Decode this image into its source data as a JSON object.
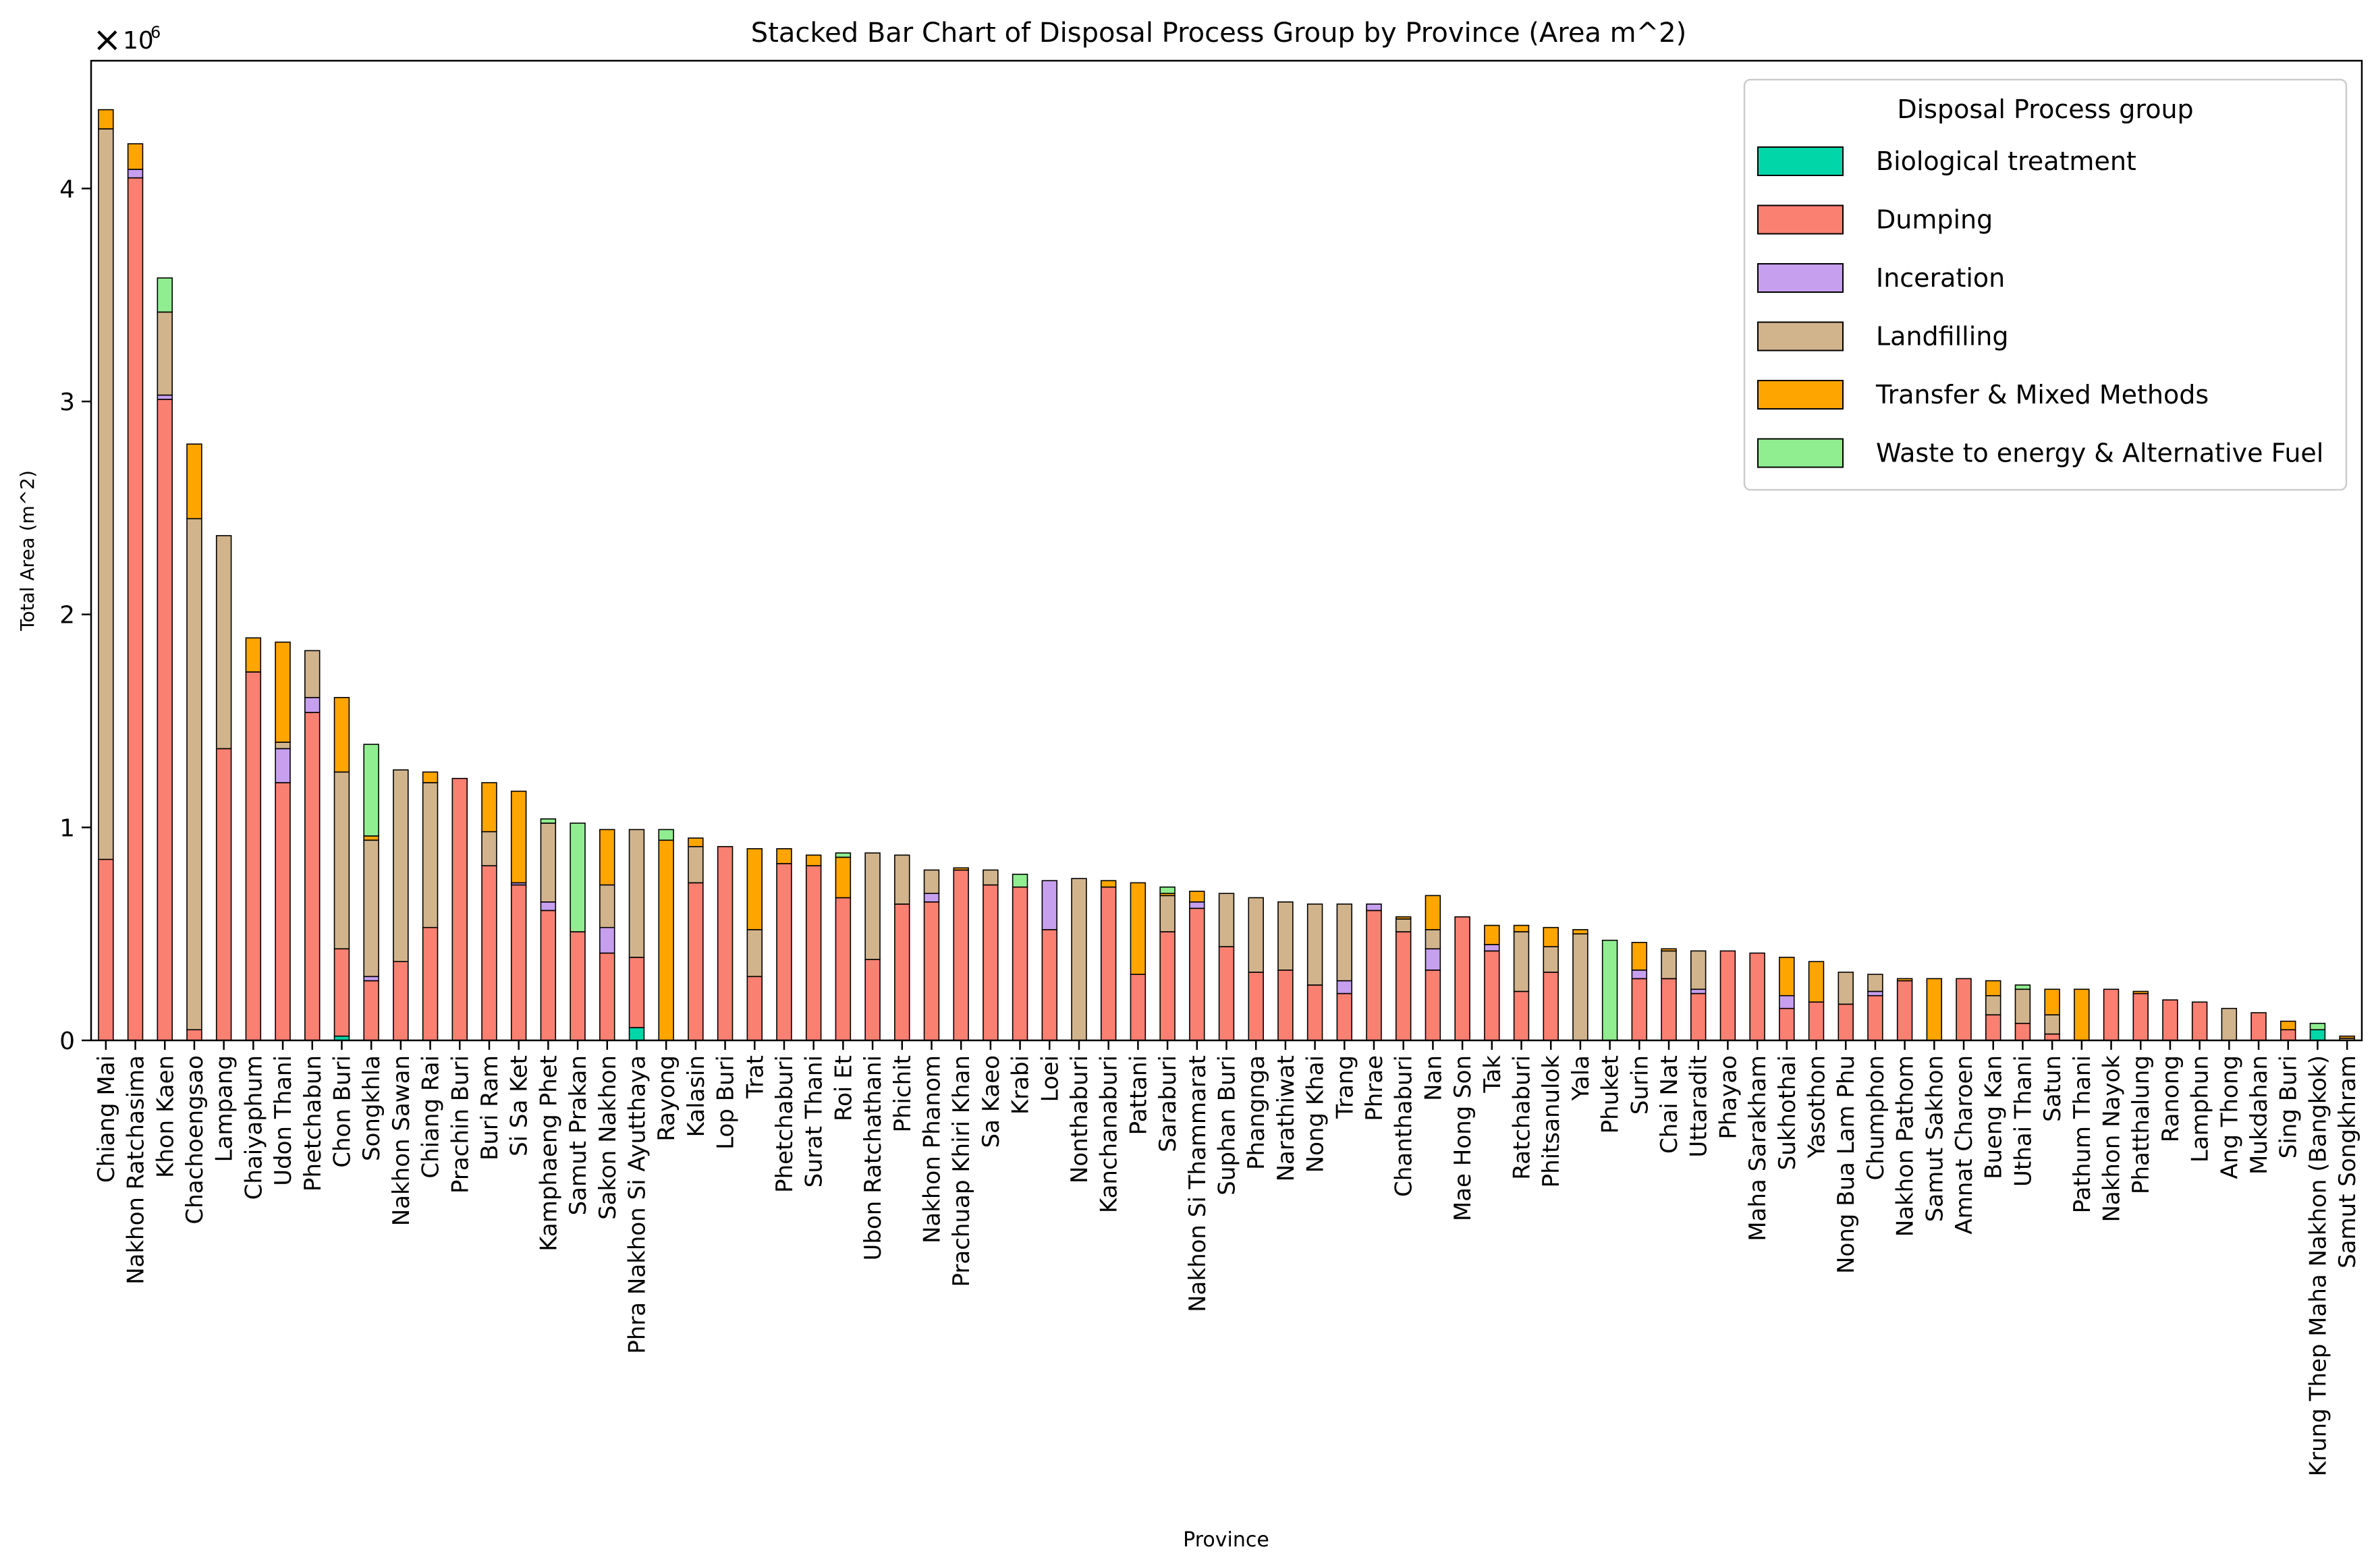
{
  "chart_data": {
    "type": "bar",
    "stacked": true,
    "title": "Stacked Bar Chart of Disposal Process Group by Province (Area m^2)",
    "xlabel": "Province",
    "ylabel": "Total Area (m^2)",
    "y_scale_label": "1e6",
    "ylim": [
      0,
      4.6
    ],
    "yticks": [
      0,
      1,
      2,
      3,
      4
    ],
    "grid": false,
    "legend": {
      "title": "Disposal Process group",
      "placement": "top-right"
    },
    "categories": [
      "Chiang Mai",
      "Nakhon Ratchasima",
      "Khon Kaen",
      "Chachoengsao",
      "Lampang",
      "Chaiyaphum",
      "Udon Thani",
      "Phetchabun",
      "Chon Buri",
      "Songkhla",
      "Nakhon Sawan",
      "Chiang Rai",
      "Prachin Buri",
      "Buri Ram",
      "Si Sa Ket",
      "Kamphaeng Phet",
      "Samut Prakan",
      "Sakon Nakhon",
      "Phra Nakhon Si Ayutthaya",
      "Rayong",
      "Kalasin",
      "Lop Buri",
      "Trat",
      "Phetchaburi",
      "Surat Thani",
      "Roi Et",
      "Ubon Ratchathani",
      "Phichit",
      "Nakhon Phanom",
      "Prachuap Khiri Khan",
      "Sa Kaeo",
      "Krabi",
      "Loei",
      "Nonthaburi",
      "Kanchanaburi",
      "Pattani",
      "Saraburi",
      "Nakhon Si Thammarat",
      "Suphan Buri",
      "Phangnga",
      "Narathiwat",
      "Nong Khai",
      "Trang",
      "Phrae",
      "Chanthaburi",
      "Nan",
      "Mae Hong Son",
      "Tak",
      "Ratchaburi",
      "Phitsanulok",
      "Yala",
      "Phuket",
      "Surin",
      "Chai Nat",
      "Uttaradit",
      "Phayao",
      "Maha Sarakham",
      "Sukhothai",
      "Yasothon",
      "Nong Bua Lam Phu",
      "Chumphon",
      "Nakhon Pathom",
      "Samut Sakhon",
      "Amnat Charoen",
      "Bueng Kan",
      "Uthai Thani",
      "Satun",
      "Pathum Thani",
      "Nakhon Nayok",
      "Phatthalung",
      "Ranong",
      "Lamphun",
      "Ang Thong",
      "Mukdahan",
      "Sing Buri",
      "Krung Thep Maha Nakhon (Bangkok)",
      "Samut Songkhram"
    ],
    "series": [
      {
        "name": "Biological treatment",
        "color": "#00D6A8",
        "values": [
          0,
          0,
          0,
          0,
          0,
          0,
          0,
          0,
          0.02,
          0,
          0,
          0,
          0,
          0,
          0,
          0,
          0,
          0,
          0.06,
          0,
          0,
          0,
          0,
          0,
          0,
          0,
          0,
          0,
          0,
          0,
          0,
          0,
          0,
          0,
          0,
          0,
          0,
          0,
          0,
          0,
          0,
          0,
          0,
          0,
          0,
          0,
          0,
          0,
          0,
          0,
          0,
          0,
          0,
          0,
          0,
          0,
          0,
          0,
          0,
          0,
          0,
          0,
          0,
          0,
          0,
          0,
          0,
          0,
          0,
          0,
          0,
          0,
          0,
          0,
          0,
          0.05,
          0
        ]
      },
      {
        "name": "Dumping",
        "color": "#FA8072",
        "values": [
          0.85,
          4.05,
          3.01,
          0.05,
          1.37,
          1.73,
          1.21,
          1.54,
          0.41,
          0.28,
          0.37,
          0.53,
          1.23,
          0.82,
          0.73,
          0.61,
          0.51,
          0.41,
          0.33,
          0,
          0.74,
          0.91,
          0.3,
          0.83,
          0.82,
          0.67,
          0.38,
          0.64,
          0.65,
          0.8,
          0.73,
          0.72,
          0.52,
          0,
          0.72,
          0.31,
          0.51,
          0.62,
          0.44,
          0.32,
          0.33,
          0.26,
          0.22,
          0.61,
          0.51,
          0.33,
          0.58,
          0.42,
          0.23,
          0.32,
          0,
          0,
          0.29,
          0.29,
          0.22,
          0.42,
          0.41,
          0.15,
          0.18,
          0.17,
          0.21,
          0.28,
          0,
          0.29,
          0.12,
          0.08,
          0.03,
          0,
          0.24,
          0.22,
          0.19,
          0.18,
          0,
          0.13,
          0.05,
          0,
          0
        ]
      },
      {
        "name": "Inceration",
        "color": "#C79FEF",
        "values": [
          0,
          0.04,
          0.02,
          0,
          0,
          0,
          0.16,
          0.07,
          0,
          0.02,
          0,
          0,
          0,
          0,
          0.01,
          0.04,
          0,
          0.12,
          0,
          0,
          0,
          0,
          0,
          0,
          0,
          0,
          0,
          0,
          0.04,
          0,
          0,
          0,
          0.23,
          0,
          0,
          0,
          0,
          0.03,
          0,
          0,
          0,
          0,
          0.06,
          0.03,
          0,
          0.1,
          0,
          0.03,
          0,
          0,
          0,
          0,
          0.04,
          0,
          0.02,
          0,
          0,
          0.06,
          0,
          0,
          0.02,
          0,
          0,
          0,
          0,
          0,
          0,
          0,
          0,
          0,
          0,
          0,
          0,
          0,
          0,
          0,
          0
        ]
      },
      {
        "name": "Landfilling",
        "color": "#D2B48C",
        "values": [
          3.43,
          0,
          0.39,
          2.4,
          1.0,
          0,
          0.03,
          0.22,
          0.83,
          0.64,
          0.9,
          0.68,
          0,
          0.16,
          0,
          0.37,
          0,
          0.2,
          0.6,
          0,
          0.17,
          0,
          0.22,
          0,
          0,
          0,
          0.5,
          0.23,
          0.11,
          0,
          0.07,
          0,
          0,
          0.76,
          0,
          0,
          0.17,
          0,
          0.25,
          0.35,
          0.32,
          0.38,
          0.36,
          0,
          0.06,
          0.09,
          0,
          0,
          0.28,
          0.12,
          0.5,
          0,
          0,
          0.13,
          0.18,
          0,
          0,
          0,
          0,
          0.15,
          0.08,
          0,
          0,
          0,
          0.09,
          0.16,
          0.09,
          0,
          0,
          0,
          0,
          0,
          0.15,
          0,
          0,
          0,
          0.01
        ]
      },
      {
        "name": "Transfer & Mixed Methods",
        "color": "#FFA500",
        "values": [
          0.09,
          0.12,
          0,
          0.35,
          0,
          0.16,
          0.47,
          0,
          0.35,
          0.02,
          0,
          0.05,
          0,
          0.23,
          0.43,
          0,
          0,
          0.26,
          0,
          0.94,
          0.04,
          0,
          0.38,
          0.07,
          0.05,
          0.19,
          0,
          0,
          0,
          0.01,
          0,
          0,
          0,
          0,
          0.03,
          0.43,
          0.01,
          0.05,
          0,
          0,
          0,
          0,
          0,
          0,
          0.01,
          0.16,
          0,
          0.09,
          0.03,
          0.09,
          0.02,
          0,
          0.13,
          0.01,
          0,
          0,
          0,
          0.18,
          0.19,
          0,
          0,
          0.01,
          0.29,
          0,
          0.07,
          0,
          0.12,
          0.24,
          0,
          0.01,
          0,
          0,
          0,
          0,
          0.04,
          0,
          0.01
        ]
      },
      {
        "name": "Waste to energy & Alternative Fuel",
        "color": "#90EE90",
        "values": [
          0,
          0,
          0.16,
          0,
          0,
          0,
          0,
          0,
          0,
          0.43,
          0,
          0,
          0,
          0,
          0,
          0.02,
          0.51,
          0,
          0,
          0.05,
          0,
          0,
          0,
          0,
          0,
          0.02,
          0,
          0,
          0,
          0,
          0,
          0.06,
          0,
          0,
          0,
          0,
          0.03,
          0,
          0,
          0,
          0,
          0,
          0,
          0,
          0,
          0,
          0,
          0,
          0,
          0,
          0,
          0.47,
          0,
          0,
          0,
          0,
          0,
          0,
          0,
          0,
          0,
          0,
          0,
          0,
          0,
          0.02,
          0,
          0,
          0,
          0,
          0,
          0,
          0,
          0,
          0,
          0.03,
          0
        ]
      }
    ]
  }
}
